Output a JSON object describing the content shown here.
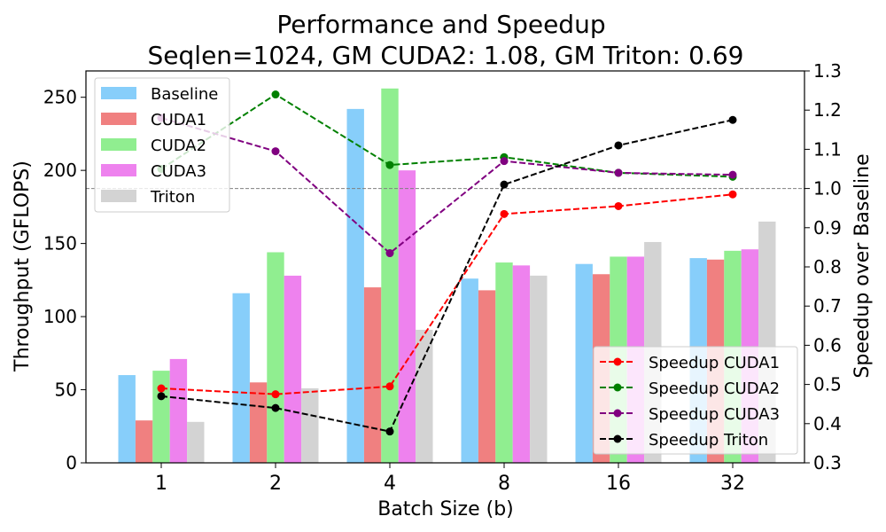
{
  "chart_data": {
    "type": "bar+line",
    "title_line1": "Performance and Speedup",
    "title_line2": "Seqlen=1024, GM CUDA2: 1.08, GM Triton: 0.69",
    "xlabel": "Batch Size (b)",
    "ylabel_left": "Throughput (GFLOPS)",
    "ylabel_right": "Speedup over Baseline",
    "categories": [
      "1",
      "2",
      "4",
      "8",
      "16",
      "32"
    ],
    "ylim_left": [
      0,
      268
    ],
    "yticks_left": [
      "0",
      "50",
      "100",
      "150",
      "200",
      "250"
    ],
    "ylim_right": [
      0.3,
      1.3
    ],
    "yticks_right": [
      "0.3",
      "0.4",
      "0.5",
      "0.6",
      "0.7",
      "0.8",
      "0.9",
      "1.0",
      "1.1",
      "1.2",
      "1.3"
    ],
    "reference_line": 1.0,
    "bar_series": [
      {
        "name": "Baseline",
        "color": "#87cefa",
        "values": [
          60,
          116,
          242,
          126,
          136,
          140
        ]
      },
      {
        "name": "CUDA1",
        "color": "#f08080",
        "values": [
          29,
          55,
          120,
          118,
          129,
          139
        ]
      },
      {
        "name": "CUDA2",
        "color": "#90ee90",
        "values": [
          63,
          144,
          256,
          137,
          141,
          145
        ]
      },
      {
        "name": "CUDA3",
        "color": "#ee82ee",
        "values": [
          71,
          128,
          200,
          135,
          141,
          146
        ]
      },
      {
        "name": "Triton",
        "color": "#d3d3d3",
        "values": [
          28,
          51,
          91,
          128,
          151,
          165
        ]
      }
    ],
    "line_series": [
      {
        "name": "Speedup CUDA1",
        "color": "#ff0000",
        "values": [
          0.49,
          0.475,
          0.495,
          0.935,
          0.955,
          0.985
        ]
      },
      {
        "name": "Speedup CUDA2",
        "color": "#008000",
        "values": [
          1.05,
          1.24,
          1.06,
          1.08,
          1.04,
          1.03
        ]
      },
      {
        "name": "Speedup CUDA3",
        "color": "#800080",
        "values": [
          1.18,
          1.095,
          0.835,
          1.07,
          1.04,
          1.035
        ]
      },
      {
        "name": "Speedup Triton",
        "color": "#000000",
        "values": [
          0.47,
          0.44,
          0.38,
          1.01,
          1.11,
          1.175
        ]
      }
    ],
    "bar_legend_position": "upper-left",
    "line_legend_position": "lower-right"
  }
}
